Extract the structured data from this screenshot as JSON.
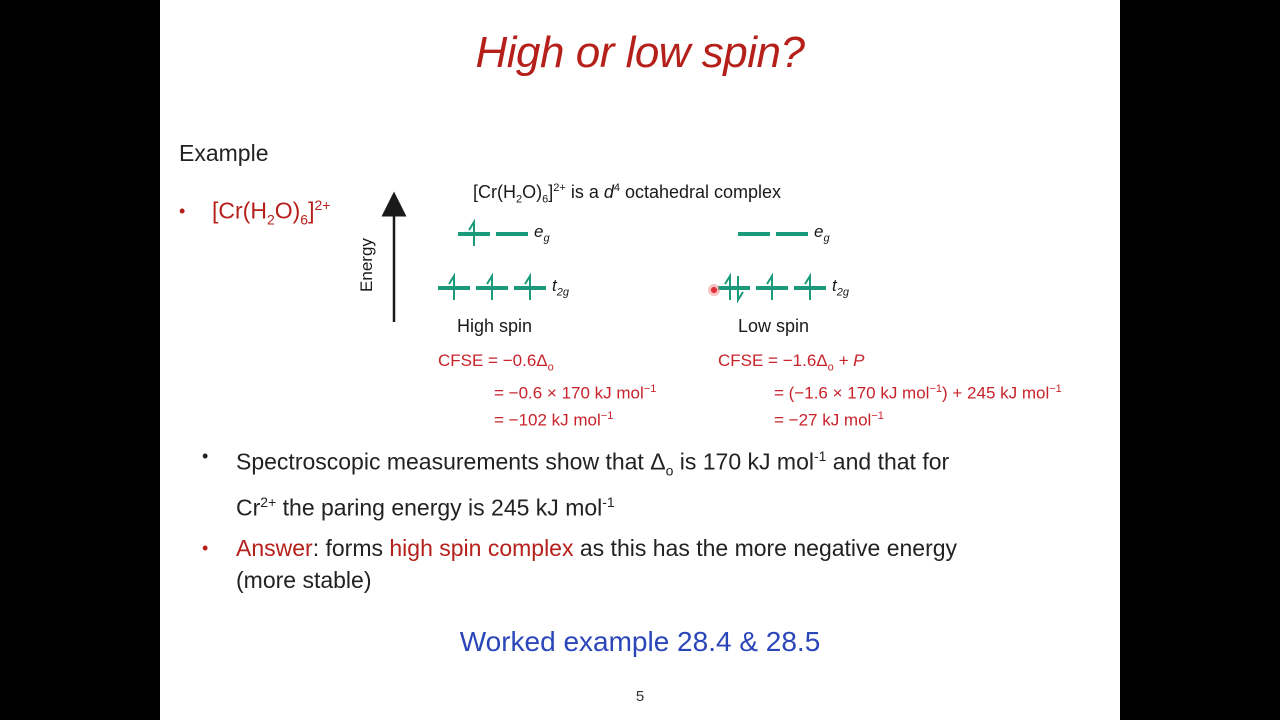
{
  "slide": {
    "title": "High or low spin?",
    "example_label": "Example",
    "complex": {
      "prefix": "[Cr(H",
      "sub1": "2",
      "mid": "O)",
      "sub2": "6",
      "suffix": "]",
      "sup": "2+"
    },
    "diagram": {
      "caption_prefix": "[Cr(H",
      "caption_sub1": "2",
      "caption_mid": "O)",
      "caption_sub2": "6",
      "caption_close": "]",
      "caption_sup": "2+",
      "caption_text": " is a ",
      "caption_d": "d",
      "caption_d_sup": "4",
      "caption_end": " octahedral complex",
      "energy_axis": "Energy",
      "eg": "e",
      "eg_sub": "g",
      "t2g": "t",
      "t2g_sub": "2g",
      "high_spin_label": "High spin",
      "low_spin_label": "Low spin",
      "level_color": "#1a9a7a",
      "cfse_high": [
        "CFSE  =  −0.6Δ",
        "=  −0.6 × 170 kJ mol",
        "=  −102 kJ mol"
      ],
      "cfse_low": [
        "CFSE  =  −1.6Δ",
        "=  (−1.6 × 170 kJ mol",
        "=  −27 kJ mol"
      ],
      "cfse_low_tail1": " + P",
      "cfse_low_tail2": ") + 245 kJ mol",
      "cfse_sub_o": "o",
      "cfse_sup_m1": "−1"
    },
    "bullet1": {
      "part1": "Spectroscopic measurements show that Δ",
      "sub_o": "o",
      "part2": " is 170 kJ mol",
      "sup1": "-1",
      "part3": " and that for",
      "part4": "Cr",
      "sup2": "2+",
      "part5": " the paring energy is 245 kJ mol",
      "sup3": "-1"
    },
    "bullet2": {
      "answer_label": "Answer",
      "part1": ": forms ",
      "highlight": "high spin complex",
      "part2": " as this has the more negative energy",
      "line2": "(more stable)"
    },
    "worked_example": "Worked example 28.4 & 28.5",
    "page_number": "5",
    "colors": {
      "accent_red": "#b5201b",
      "link_blue": "#2a46b8",
      "orbital_green": "#1a9a7a"
    }
  }
}
